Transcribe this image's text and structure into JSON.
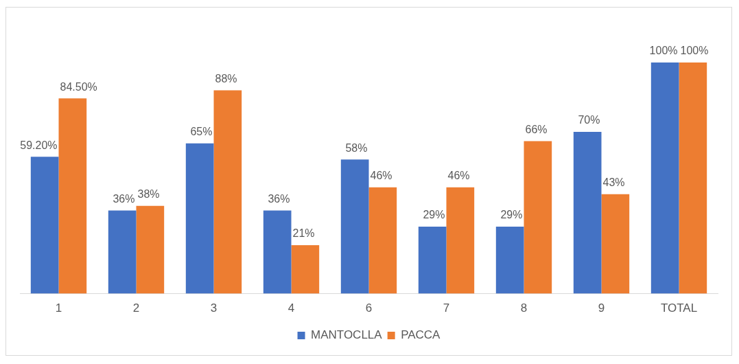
{
  "chart_data": {
    "type": "bar",
    "categories": [
      "1",
      "2",
      "3",
      "4",
      "6",
      "7",
      "8",
      "9",
      "TOTAL"
    ],
    "series": [
      {
        "name": "MANTOCLLA",
        "color": "#4472c4",
        "values": [
          59.2,
          36,
          65,
          36,
          58,
          29,
          29,
          70,
          100
        ],
        "value_labels": [
          "59.20%",
          "36%",
          "65%",
          "36%",
          "58%",
          "29%",
          "29%",
          "70%",
          "100%"
        ]
      },
      {
        "name": "PACCA",
        "color": "#ed7d31",
        "values": [
          84.5,
          38,
          88,
          21,
          46,
          46,
          66,
          43,
          100
        ],
        "value_labels": [
          "84.50%",
          "38%",
          "88%",
          "21%",
          "46%",
          "46%",
          "66%",
          "43%",
          "100%"
        ]
      }
    ],
    "ylim": [
      0,
      100
    ],
    "grid": false,
    "legend": "bottom",
    "tick_labels": "x"
  }
}
